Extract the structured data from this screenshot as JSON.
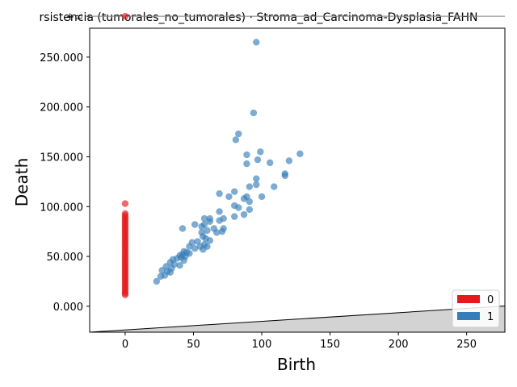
{
  "chart_data": {
    "type": "scatter",
    "title": "rsistencia (tumorales_no_tumorales) · Stroma_ad_Carcinoma-Dysplasia_FAHN",
    "xlabel": "Birth",
    "ylabel": "Death",
    "xlim": [
      -26,
      278
    ],
    "ylim": [
      -26000,
      279000
    ],
    "x_ticks": [
      0,
      50,
      100,
      150,
      200,
      250
    ],
    "y_ticks": [
      0,
      50000,
      100000,
      150000,
      200000,
      250000
    ],
    "y_tick_labels": [
      "0.000",
      "50.000",
      "100.000",
      "150.000",
      "200.000",
      "250.000"
    ],
    "infinity_label": "+∞",
    "infinity_value": 291000,
    "diagonal": true,
    "legend": {
      "position": "bottom-right",
      "entries": [
        "0",
        "1"
      ]
    },
    "colors": {
      "series0": "#e41a1c",
      "series1": "#377eb8",
      "region": "#d3d3d3",
      "infinity_line": "#808080"
    },
    "series": [
      {
        "name": "0",
        "points": [
          [
            0,
            291000
          ],
          [
            0,
            103000
          ],
          [
            0,
            93000
          ],
          [
            0,
            91000
          ],
          [
            0,
            89000
          ],
          [
            0,
            87000
          ],
          [
            0,
            85000
          ],
          [
            0,
            83000
          ],
          [
            0,
            81000
          ],
          [
            0,
            79000
          ],
          [
            0,
            77000
          ],
          [
            0,
            75000
          ],
          [
            0,
            73000
          ],
          [
            0,
            71000
          ],
          [
            0,
            69000
          ],
          [
            0,
            67000
          ],
          [
            0,
            65000
          ],
          [
            0,
            63000
          ],
          [
            0,
            61000
          ],
          [
            0,
            59000
          ],
          [
            0,
            57000
          ],
          [
            0,
            55000
          ],
          [
            0,
            53000
          ],
          [
            0,
            51000
          ],
          [
            0,
            49000
          ],
          [
            0,
            47000
          ],
          [
            0,
            45000
          ],
          [
            0,
            43000
          ],
          [
            0,
            41000
          ],
          [
            0,
            39000
          ],
          [
            0,
            37000
          ],
          [
            0,
            35000
          ],
          [
            0,
            33000
          ],
          [
            0,
            31000
          ],
          [
            0,
            29000
          ],
          [
            0,
            27000
          ],
          [
            0,
            25000
          ],
          [
            0,
            23000
          ],
          [
            0,
            21000
          ],
          [
            0,
            19000
          ],
          [
            0,
            17000
          ],
          [
            0,
            15000
          ],
          [
            0,
            13000
          ],
          [
            0,
            11500
          ]
        ]
      },
      {
        "name": "1",
        "points": [
          [
            96,
            265000
          ],
          [
            94,
            194000
          ],
          [
            83,
            173000
          ],
          [
            81,
            167000
          ],
          [
            99,
            155000
          ],
          [
            89,
            152000
          ],
          [
            128,
            153000
          ],
          [
            97,
            147000
          ],
          [
            120,
            146000
          ],
          [
            106,
            144000
          ],
          [
            89,
            143000
          ],
          [
            117,
            133000
          ],
          [
            117,
            131000
          ],
          [
            96,
            128000
          ],
          [
            91,
            120000
          ],
          [
            96,
            122000
          ],
          [
            109,
            120000
          ],
          [
            80,
            115000
          ],
          [
            69,
            113000
          ],
          [
            89,
            110000
          ],
          [
            100,
            110000
          ],
          [
            76,
            110000
          ],
          [
            87,
            108000
          ],
          [
            91,
            105000
          ],
          [
            80,
            101000
          ],
          [
            83,
            99000
          ],
          [
            91,
            97000
          ],
          [
            87,
            92000
          ],
          [
            80,
            90000
          ],
          [
            69,
            95000
          ],
          [
            72,
            88000
          ],
          [
            69,
            86000
          ],
          [
            58,
            88000
          ],
          [
            62,
            88000
          ],
          [
            62,
            85000
          ],
          [
            58,
            82000
          ],
          [
            51,
            82000
          ],
          [
            56,
            80000
          ],
          [
            65,
            78000
          ],
          [
            42,
            78000
          ],
          [
            60,
            76000
          ],
          [
            71,
            75000
          ],
          [
            72,
            78000
          ],
          [
            56,
            74000
          ],
          [
            67,
            74000
          ],
          [
            57,
            70000
          ],
          [
            59,
            68000
          ],
          [
            62,
            66000
          ],
          [
            53,
            65000
          ],
          [
            49,
            64000
          ],
          [
            58,
            62000
          ],
          [
            55,
            60000
          ],
          [
            60,
            60000
          ],
          [
            47,
            60000
          ],
          [
            51,
            58000
          ],
          [
            57,
            57000
          ],
          [
            43,
            55000
          ],
          [
            45,
            54000
          ],
          [
            47,
            53000
          ],
          [
            42,
            52000
          ],
          [
            40,
            51000
          ],
          [
            44,
            50000
          ],
          [
            41,
            49000
          ],
          [
            38,
            48000
          ],
          [
            35,
            47000
          ],
          [
            43,
            46000
          ],
          [
            33,
            44000
          ],
          [
            36,
            42000
          ],
          [
            40,
            41000
          ],
          [
            30,
            40000
          ],
          [
            34,
            38000
          ],
          [
            27,
            36000
          ],
          [
            31,
            35000
          ],
          [
            33,
            34000
          ],
          [
            29,
            31000
          ],
          [
            26,
            30000
          ],
          [
            23,
            25000
          ]
        ]
      }
    ]
  }
}
